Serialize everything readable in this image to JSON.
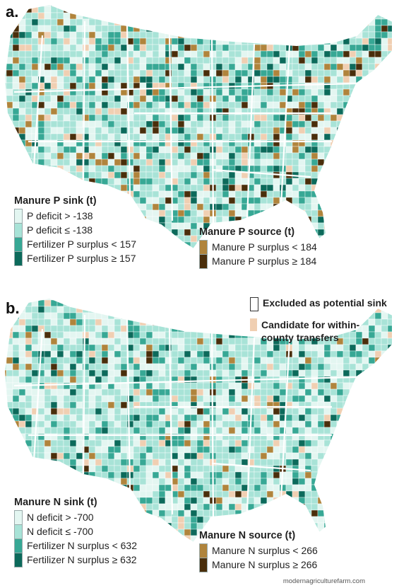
{
  "colors": {
    "sink_light": "#e3f6f1",
    "sink_mid": "#a8e3d7",
    "sink_teal": "#37a895",
    "sink_dark": "#0c6a5b",
    "source_light": "#b0843c",
    "source_dark": "#4a2e0b",
    "candidate": "#f0cfb2",
    "excluded": "#ffffff",
    "border": "#ffffff"
  },
  "panel_a": {
    "label": "a.",
    "sink_title": "Manure P sink (t)",
    "sink_items": [
      {
        "label": "P deficit > -138",
        "color": "#e3f6f1"
      },
      {
        "label": "P deficit ≤ -138",
        "color": "#a8e3d7"
      },
      {
        "label": "Fertilizer P surplus < 157",
        "color": "#37a895"
      },
      {
        "label": "Fertilizer P surplus ≥ 157",
        "color": "#0c6a5b"
      }
    ],
    "source_title": "Manure P source (t)",
    "source_items": [
      {
        "label": "Manure P surplus < 184",
        "color": "#b0843c"
      },
      {
        "label": "Manure P surplus ≥ 184",
        "color": "#4a2e0b"
      }
    ]
  },
  "panel_b": {
    "label": "b.",
    "sink_title": "Manure N sink (t)",
    "sink_items": [
      {
        "label": "N deficit > -700",
        "color": "#e3f6f1"
      },
      {
        "label": "N deficit ≤ -700",
        "color": "#a8e3d7"
      },
      {
        "label": "Fertilizer N surplus < 632",
        "color": "#37a895"
      },
      {
        "label": "Fertilizer N surplus ≥ 632",
        "color": "#0c6a5b"
      }
    ],
    "source_title": "Manure N source (t)",
    "source_items": [
      {
        "label": "Manure N surplus < 266",
        "color": "#b0843c"
      },
      {
        "label": "Manure N surplus ≥ 266",
        "color": "#4a2e0b"
      }
    ]
  },
  "shared_key": {
    "excluded_label": "Excluded as potential sink",
    "candidate_label_line1": "Candidate for within-",
    "candidate_label_line2": "county transfers"
  },
  "watermark": "modernagriculturefarm.com"
}
